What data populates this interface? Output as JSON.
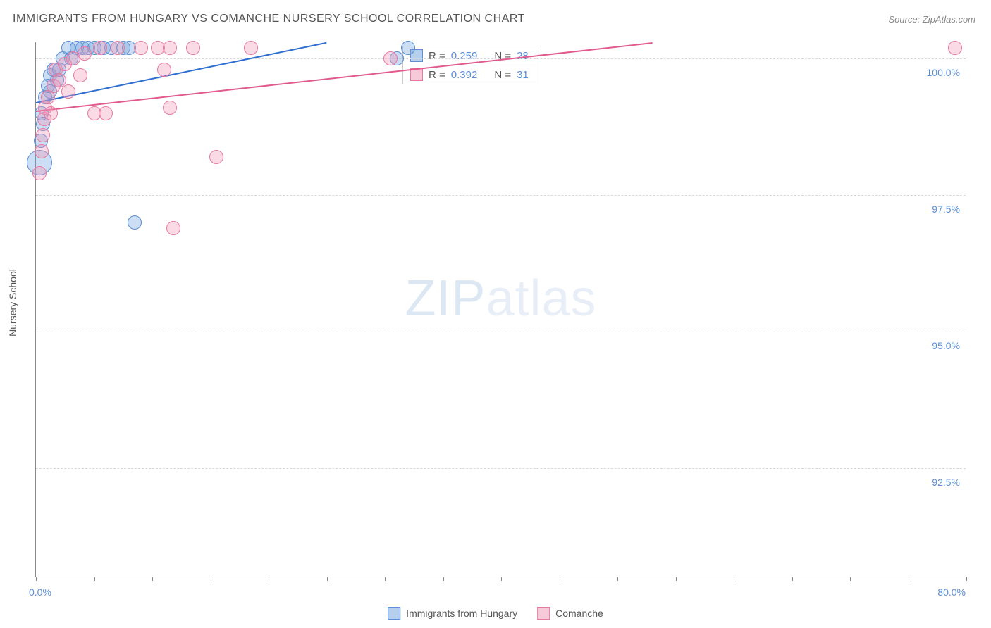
{
  "title": "IMMIGRANTS FROM HUNGARY VS COMANCHE NURSERY SCHOOL CORRELATION CHART",
  "source": "Source: ZipAtlas.com",
  "y_axis_label": "Nursery School",
  "watermark_zip": "ZIP",
  "watermark_atlas": "atlas",
  "chart": {
    "type": "scatter",
    "xlim": [
      0,
      80
    ],
    "ylim": [
      90.5,
      100.3
    ],
    "y_ticks": [
      92.5,
      95.0,
      97.5,
      100.0
    ],
    "y_tick_labels": [
      "92.5%",
      "95.0%",
      "97.5%",
      "100.0%"
    ],
    "x_ticks": [
      0,
      5,
      10,
      15,
      20,
      25,
      30,
      35,
      40,
      45,
      50,
      55,
      60,
      65,
      70,
      75,
      80
    ],
    "x_left_label": "0.0%",
    "x_right_label": "80.0%",
    "plot_bg": "#ffffff",
    "grid_color": "#d9d9d9",
    "axis_color": "#888888",
    "marker_radius": 10,
    "series": [
      {
        "key": "hungary",
        "label": "Immigrants from Hungary",
        "color_fill": "rgba(110,160,220,0.35)",
        "color_stroke": "#5b8fd6",
        "R": "0.259",
        "N": "28",
        "trend": {
          "x1": 0,
          "y1": 99.2,
          "x2": 25,
          "y2": 100.3,
          "color": "#2e6fd1"
        },
        "points": [
          {
            "x": 0.3,
            "y": 98.1,
            "r": 18
          },
          {
            "x": 0.4,
            "y": 98.5
          },
          {
            "x": 0.5,
            "y": 99.0
          },
          {
            "x": 0.6,
            "y": 98.8
          },
          {
            "x": 0.8,
            "y": 99.3
          },
          {
            "x": 1.0,
            "y": 99.5
          },
          {
            "x": 1.2,
            "y": 99.7
          },
          {
            "x": 1.2,
            "y": 99.4
          },
          {
            "x": 1.5,
            "y": 99.8
          },
          {
            "x": 1.8,
            "y": 99.6
          },
          {
            "x": 2.0,
            "y": 99.8
          },
          {
            "x": 2.3,
            "y": 100.0
          },
          {
            "x": 2.8,
            "y": 100.2
          },
          {
            "x": 3.0,
            "y": 100.0
          },
          {
            "x": 3.5,
            "y": 100.2
          },
          {
            "x": 4.0,
            "y": 100.2
          },
          {
            "x": 4.5,
            "y": 100.2
          },
          {
            "x": 5.0,
            "y": 100.2
          },
          {
            "x": 5.8,
            "y": 100.2
          },
          {
            "x": 6.5,
            "y": 100.2
          },
          {
            "x": 7.5,
            "y": 100.2
          },
          {
            "x": 8.0,
            "y": 100.2
          },
          {
            "x": 8.5,
            "y": 97.0
          },
          {
            "x": 31.0,
            "y": 100.0
          },
          {
            "x": 32.0,
            "y": 100.2
          }
        ]
      },
      {
        "key": "comanche",
        "label": "Comanche",
        "color_fill": "rgba(240,150,180,0.35)",
        "color_stroke": "#e67aa2",
        "R": "0.392",
        "N": "31",
        "trend": {
          "x1": 0,
          "y1": 99.05,
          "x2": 53,
          "y2": 100.3,
          "color": "#e15a8e"
        },
        "points": [
          {
            "x": 0.3,
            "y": 97.9
          },
          {
            "x": 0.5,
            "y": 98.3
          },
          {
            "x": 0.6,
            "y": 98.6
          },
          {
            "x": 0.7,
            "y": 98.9
          },
          {
            "x": 0.8,
            "y": 99.1
          },
          {
            "x": 1.0,
            "y": 99.3
          },
          {
            "x": 1.3,
            "y": 99.0
          },
          {
            "x": 1.5,
            "y": 99.5
          },
          {
            "x": 1.7,
            "y": 99.8
          },
          {
            "x": 2.0,
            "y": 99.6
          },
          {
            "x": 2.5,
            "y": 99.9
          },
          {
            "x": 2.8,
            "y": 99.4
          },
          {
            "x": 3.2,
            "y": 100.0
          },
          {
            "x": 3.8,
            "y": 99.7
          },
          {
            "x": 4.2,
            "y": 100.1
          },
          {
            "x": 5.0,
            "y": 99.0
          },
          {
            "x": 5.5,
            "y": 100.2
          },
          {
            "x": 6.0,
            "y": 99.0
          },
          {
            "x": 7.0,
            "y": 100.2
          },
          {
            "x": 9.0,
            "y": 100.2
          },
          {
            "x": 10.5,
            "y": 100.2
          },
          {
            "x": 11.0,
            "y": 99.8
          },
          {
            "x": 11.5,
            "y": 100.2
          },
          {
            "x": 11.8,
            "y": 96.9
          },
          {
            "x": 11.5,
            "y": 99.1
          },
          {
            "x": 13.5,
            "y": 100.2
          },
          {
            "x": 15.5,
            "y": 98.2
          },
          {
            "x": 18.5,
            "y": 100.2
          },
          {
            "x": 30.5,
            "y": 100.0
          },
          {
            "x": 79.0,
            "y": 100.2
          }
        ]
      }
    ]
  },
  "legend": {
    "r_label": "R =",
    "n_label": "N ="
  },
  "bottom_legend": {
    "items": [
      "Immigrants from Hungary",
      "Comanche"
    ]
  }
}
